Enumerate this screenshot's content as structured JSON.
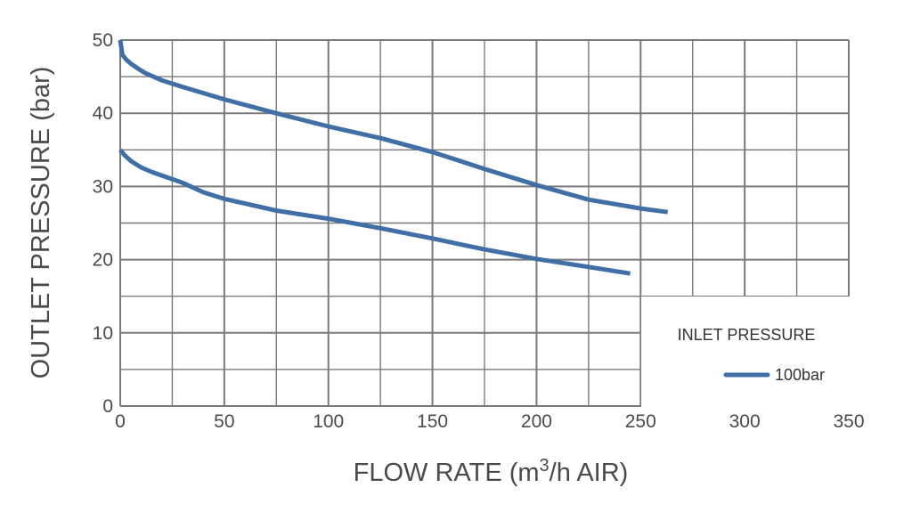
{
  "chart_data": {
    "type": "line",
    "title": "",
    "xlabel_parts": {
      "before": "FLOW RATE (m",
      "sup": "3",
      "after": "/h AIR)"
    },
    "ylabel": "OUTLET PRESSURE (bar)",
    "xlim": [
      0,
      350
    ],
    "ylim": [
      0,
      50
    ],
    "x_ticks": [
      "0",
      "50",
      "100",
      "150",
      "200",
      "250",
      "300",
      "350"
    ],
    "y_ticks": [
      "0",
      "10",
      "20",
      "30",
      "40",
      "50"
    ],
    "grid": true,
    "legend": {
      "title": "INLET PRESSURE",
      "entry": "100bar",
      "placement": "bottom-right"
    },
    "line_color": "#3f6fa6",
    "grid_color": "#7a7a7a",
    "series": [
      {
        "x": [
          0,
          0.5,
          1,
          3,
          5,
          8,
          12,
          20,
          30,
          50,
          75,
          100,
          125,
          150,
          175,
          200,
          225,
          250,
          263
        ],
        "y": [
          50,
          49,
          48,
          47.3,
          46.8,
          46.2,
          45.5,
          44.5,
          43.6,
          41.9,
          40,
          38.2,
          36.6,
          34.7,
          32.4,
          30.2,
          28.2,
          27,
          26.5
        ]
      },
      {
        "x": [
          0,
          2,
          5,
          10,
          15,
          20,
          30,
          40,
          50,
          75,
          100,
          125,
          150,
          175,
          200,
          225,
          245
        ],
        "y": [
          35,
          34.3,
          33.5,
          32.6,
          32,
          31.5,
          30.5,
          29.2,
          28.3,
          26.7,
          25.6,
          24.3,
          22.9,
          21.4,
          20.1,
          19,
          18.1
        ]
      }
    ]
  }
}
